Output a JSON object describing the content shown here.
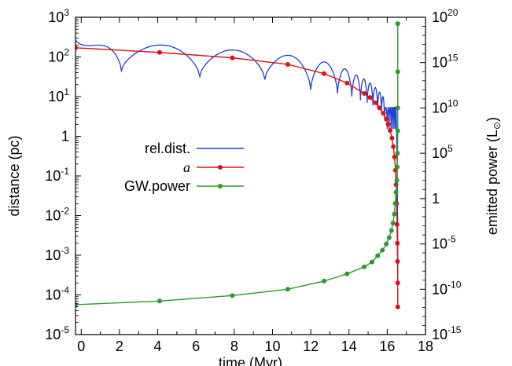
{
  "chart_data": {
    "type": "line",
    "xlabel": "time (Myr)",
    "ylabel_left": "distance (pc)",
    "ylabel_right_text": "emitted power (L",
    "ylabel_right_sub": "⊙",
    "ylabel_right_close": ")",
    "xlim": [
      -0.3,
      18
    ],
    "xticks": [
      0,
      2,
      4,
      6,
      8,
      10,
      12,
      14,
      16,
      18
    ],
    "xtick_labels": [
      "0",
      "2",
      "4",
      "6",
      "8",
      "10",
      "12",
      "14",
      "16",
      "18"
    ],
    "ylim_left": [
      1e-05,
      1000
    ],
    "yticks_left": [
      {
        "exp": 3,
        "base": "10",
        "sup": "3"
      },
      {
        "exp": 2,
        "base": "10",
        "sup": "2"
      },
      {
        "exp": 1,
        "base": "10",
        "sup": "1"
      },
      {
        "exp": 0,
        "base": "1",
        "sup": ""
      },
      {
        "exp": -1,
        "base": "10",
        "sup": "-1"
      },
      {
        "exp": -2,
        "base": "10",
        "sup": "-2"
      },
      {
        "exp": -3,
        "base": "10",
        "sup": "-3"
      },
      {
        "exp": -4,
        "base": "10",
        "sup": "-4"
      },
      {
        "exp": -5,
        "base": "10",
        "sup": "-5"
      }
    ],
    "ylim_right": [
      1e-15,
      1e+20
    ],
    "yticks_right": [
      {
        "exp": 20,
        "base": "10",
        "sup": "20"
      },
      {
        "exp": 15,
        "base": "10",
        "sup": "15"
      },
      {
        "exp": 10,
        "base": "10",
        "sup": "10"
      },
      {
        "exp": 5,
        "base": "10",
        "sup": "5"
      },
      {
        "exp": 0,
        "base": "1",
        "sup": ""
      },
      {
        "exp": -5,
        "base": "10",
        "sup": "-5"
      },
      {
        "exp": -10,
        "base": "10",
        "sup": "-10"
      },
      {
        "exp": -15,
        "base": "10",
        "sup": "-15"
      }
    ],
    "legend": {
      "placement": "center-left"
    },
    "series": [
      {
        "name": "rel.dist.",
        "color": "#1f3fd6",
        "axis": "left",
        "markers": false,
        "model": "oscillating",
        "x_range": [
          -0.3,
          16.55
        ],
        "t_end": 16.55,
        "minima": [
          -0.3,
          2.1,
          6.2,
          9.6,
          12.0,
          13.4,
          14.15,
          14.6,
          14.95,
          15.25,
          15.5,
          15.7,
          15.85,
          16.0,
          16.1,
          16.2,
          16.28,
          16.35,
          16.42,
          16.48
        ],
        "maxima": [
          [
            -0.3,
            270
          ],
          [
            2.1,
            45
          ],
          [
            4.1,
            200
          ],
          [
            6.2,
            32
          ],
          [
            7.9,
            150
          ],
          [
            9.6,
            27
          ],
          [
            10.8,
            110
          ],
          [
            12.0,
            15
          ],
          [
            12.7,
            75
          ],
          [
            13.4,
            12
          ],
          [
            13.8,
            50
          ],
          [
            14.15,
            10
          ],
          [
            14.4,
            35
          ],
          [
            14.6,
            8
          ],
          [
            14.8,
            28
          ],
          [
            14.95,
            7
          ],
          [
            15.1,
            22
          ],
          [
            15.25,
            6
          ],
          [
            15.38,
            17
          ],
          [
            15.5,
            5
          ],
          [
            15.6,
            13
          ],
          [
            15.7,
            4
          ],
          [
            15.8,
            10
          ],
          [
            15.85,
            3
          ]
        ]
      },
      {
        "name": "a",
        "color": "#e01010",
        "axis": "left",
        "markers": true,
        "x": [
          -0.3,
          4.1,
          7.9,
          10.8,
          12.7,
          13.9,
          14.8,
          15.1,
          15.4,
          15.6,
          15.8,
          15.95,
          16.05,
          16.15,
          16.25,
          16.32,
          16.38,
          16.43,
          16.46,
          16.49,
          16.51,
          16.53,
          16.54,
          16.55,
          16.55
        ],
        "y": [
          170,
          130,
          95,
          65,
          38,
          22,
          12,
          9.5,
          7,
          5.2,
          3.8,
          2.7,
          2.0,
          1.4,
          0.9,
          0.55,
          0.3,
          0.14,
          0.06,
          0.02,
          0.006,
          0.002,
          0.0007,
          0.0002,
          5e-05
        ]
      },
      {
        "name": "GW.power",
        "color": "#2a9a2a",
        "axis": "right",
        "markers": true,
        "x": [
          -0.3,
          4.1,
          7.9,
          10.8,
          12.7,
          13.9,
          14.8,
          15.2,
          15.5,
          15.75,
          15.95,
          16.1,
          16.22,
          16.3,
          16.37,
          16.42,
          16.46,
          16.5,
          16.52,
          16.54,
          16.55,
          16.55,
          16.55,
          16.55
        ],
        "y": [
          2e-12,
          5e-12,
          2e-11,
          1e-10,
          8e-10,
          5e-09,
          3e-08,
          1e-07,
          5e-07,
          2e-06,
          1e-05,
          5e-05,
          0.0003,
          0.002,
          0.02,
          0.3,
          5,
          100,
          3000,
          100000.0,
          30000000.0,
          10000000000.0,
          100000000000000.0,
          2e+19
        ]
      }
    ]
  }
}
